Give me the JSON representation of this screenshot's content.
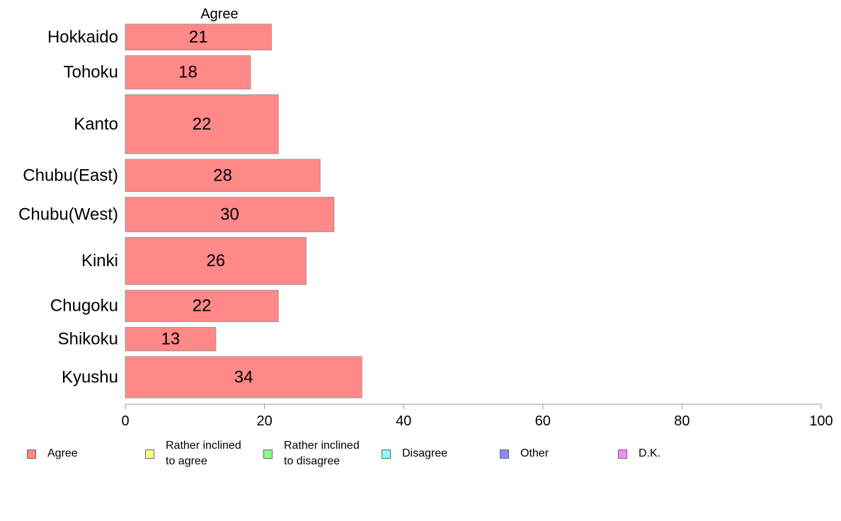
{
  "chart_data": {
    "type": "bar",
    "orientation": "horizontal",
    "series_header": "Agree",
    "categories": [
      "Hokkaido",
      "Tohoku",
      "Kanto",
      "Chubu(East)",
      "Chubu(West)",
      "Kinki",
      "Chugoku",
      "Shikoku",
      "Kyushu"
    ],
    "category_weights": [
      0.66,
      0.85,
      1.5,
      0.82,
      0.88,
      1.2,
      0.8,
      0.6,
      1.05
    ],
    "series": [
      {
        "name": "Agree",
        "color": "#ff8888",
        "values": [
          21,
          18,
          22,
          28,
          30,
          26,
          22,
          13,
          34
        ]
      }
    ],
    "xlim": [
      0,
      100
    ],
    "xticks": [
      0,
      20,
      40,
      60,
      80,
      100
    ],
    "grid": false,
    "legend_position": "bottom",
    "legend": [
      {
        "label": "Agree",
        "color": "#ff8888"
      },
      {
        "label": "Rather inclined\nto agree",
        "color": "#ffff88"
      },
      {
        "label": "Rather inclined\nto disagree",
        "color": "#88ff88"
      },
      {
        "label": "Disagree",
        "color": "#88ffff"
      },
      {
        "label": "Other",
        "color": "#8888ff"
      },
      {
        "label": "D.K.",
        "color": "#ff88ff"
      }
    ]
  }
}
